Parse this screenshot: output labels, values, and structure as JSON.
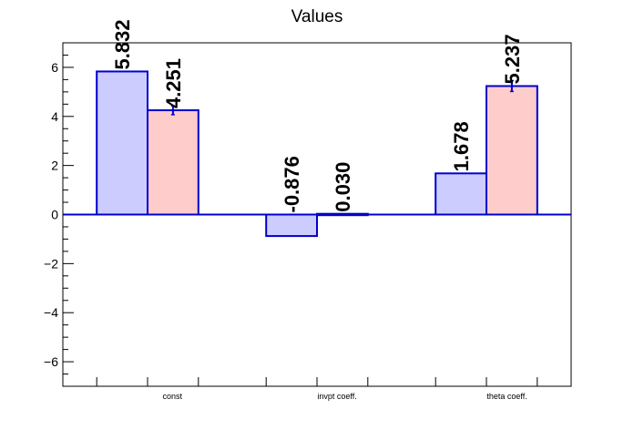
{
  "chart_data": {
    "type": "bar",
    "title": "Values",
    "xlabel": "",
    "ylabel": "",
    "categories": [
      "const",
      "invpt coeff.",
      "theta coeff."
    ],
    "series": [
      {
        "color": "#ccccff",
        "values": [
          5.832,
          -0.876,
          1.678
        ],
        "labels": [
          "5.832",
          "-0.876",
          "1.678"
        ],
        "errors": [
          0,
          0,
          0
        ]
      },
      {
        "color": "#ffcccc",
        "values": [
          4.251,
          0.03,
          5.237
        ],
        "labels": [
          "4.251",
          "0.030",
          "5.237"
        ],
        "errors": [
          0.18,
          0,
          0.22
        ]
      }
    ],
    "ylim": [
      -7,
      7
    ],
    "yticks": [
      -6,
      -4,
      -2,
      0,
      2,
      4,
      6
    ],
    "ytick_labels": [
      "−6",
      "−4",
      "−2",
      "0",
      "2",
      "4",
      "6"
    ],
    "bar_edge_color": "#0000cc",
    "zero_line_color": "#0000cc",
    "grid": false,
    "legend": "none"
  }
}
